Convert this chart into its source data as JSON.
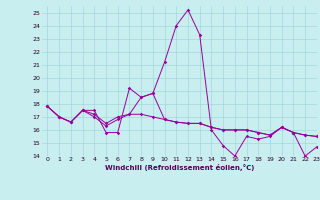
{
  "xlabel": "Windchill (Refroidissement éolien,°C)",
  "xlim": [
    -0.5,
    23
  ],
  "ylim": [
    14,
    25.5
  ],
  "yticks": [
    14,
    15,
    16,
    17,
    18,
    19,
    20,
    21,
    22,
    23,
    24,
    25
  ],
  "xticks": [
    0,
    1,
    2,
    3,
    4,
    5,
    6,
    7,
    8,
    9,
    10,
    11,
    12,
    13,
    14,
    15,
    16,
    17,
    18,
    19,
    20,
    21,
    22,
    23
  ],
  "background_color": "#c8eef0",
  "grid_color": "#a0d8dc",
  "line_color": "#990099",
  "lines": [
    [
      17.8,
      17.0,
      16.6,
      17.5,
      17.5,
      15.8,
      15.8,
      19.2,
      18.5,
      18.8,
      21.2,
      24.0,
      25.2,
      23.3,
      16.0,
      14.8,
      14.0,
      15.5,
      15.3,
      15.5,
      16.2,
      15.8,
      14.0,
      14.7
    ],
    [
      17.8,
      17.0,
      16.6,
      17.5,
      17.0,
      16.3,
      16.8,
      17.2,
      17.2,
      17.0,
      16.8,
      16.6,
      16.5,
      16.5,
      16.2,
      16.0,
      16.0,
      16.0,
      15.8,
      15.6,
      16.2,
      15.8,
      15.6,
      15.5
    ],
    [
      17.8,
      17.0,
      16.6,
      17.5,
      17.2,
      16.5,
      17.0,
      17.2,
      18.5,
      18.8,
      16.8,
      16.6,
      16.5,
      16.5,
      16.2,
      16.0,
      16.0,
      16.0,
      15.8,
      15.6,
      16.2,
      15.8,
      15.6,
      15.5
    ]
  ]
}
